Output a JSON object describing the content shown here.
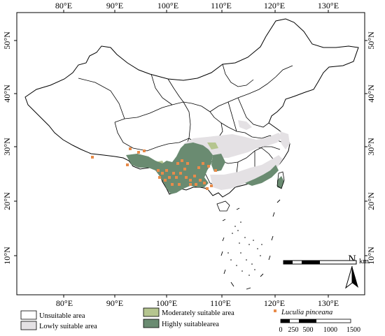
{
  "map": {
    "top_axis": [
      "80°E",
      "90°E",
      "100°E",
      "110°E",
      "120°E",
      "130°E"
    ],
    "bottom_axis": [
      "80°E",
      "90°E",
      "100°E",
      "110°E",
      "120°E",
      "130°E"
    ],
    "left_axis": [
      "50°N",
      "40°N",
      "30°N",
      "20°N",
      "10°N"
    ],
    "right_axis": [
      "50°N",
      "40°N",
      "30°N",
      "20°N",
      "10°N"
    ],
    "north_label": "N"
  },
  "legend": {
    "unsuitable": "Unsuitable area",
    "lowly": "Lowly suitable area",
    "moderately": "Moderately suitable area",
    "highly": "Highly suitablearea",
    "species": "Luculia pinceana",
    "colors": {
      "unsuitable": "#ffffff",
      "lowly": "#e4e1e4",
      "moderately": "#b5c58f",
      "highly": "#6a8b71",
      "occurrence": "#e88b4a"
    }
  },
  "scale": {
    "unit": "km",
    "ticks": [
      "0",
      "250",
      "500",
      "1000",
      "1500"
    ]
  }
}
